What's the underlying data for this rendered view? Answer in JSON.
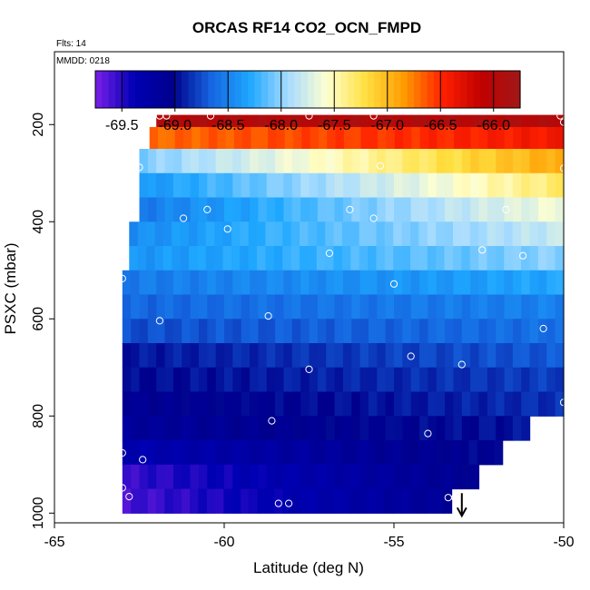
{
  "title": "ORCAS RF14 CO2_OCN_FMPD",
  "flights_note": "Flts: 14",
  "date_note": "MMDD: 0218",
  "chart_data": {
    "type": "heatmap",
    "title": "ORCAS RF14 CO2_OCN_FMPD",
    "xlabel": "Latitude (deg N)",
    "ylabel": "PSXC (mbar)",
    "xlim": [
      -65,
      -50
    ],
    "ylim": [
      1020,
      50
    ],
    "y_inverted": true,
    "xticks": [
      -65,
      -60,
      -55,
      -50
    ],
    "xtick_labels": [
      "-65",
      "-60",
      "-55",
      "-50"
    ],
    "yticks": [
      200,
      400,
      600,
      800,
      1000
    ],
    "ytick_labels": [
      "200",
      "400",
      "600",
      "800",
      "1000"
    ],
    "colorbar": {
      "range": [
        -69.75,
        -65.75
      ],
      "ticks": [
        -69.5,
        -69.0,
        -68.5,
        -68.0,
        -67.5,
        -67.0,
        -66.5,
        -66.0
      ],
      "tick_labels": [
        "-69.5",
        "-69.0",
        "-68.5",
        "-68.0",
        "-67.5",
        "-67.0",
        "-66.5",
        "-66.0"
      ],
      "colors": [
        "#7b1fe8",
        "#0000b4",
        "#00008c",
        "#1565e0",
        "#1ea7ff",
        "#a8dcff",
        "#ffffd0",
        "#ffe040",
        "#ff9a00",
        "#ff2000",
        "#c00000",
        "#a01818"
      ]
    },
    "layers": [
      {
        "p_top": 180,
        "p_bottom": 205,
        "lat_start": -62.0,
        "lat_end": -50,
        "v_left": -65.95,
        "v_right": -65.95
      },
      {
        "p_top": 205,
        "p_bottom": 250,
        "lat_start": -62.2,
        "lat_end": -50,
        "v_left": -66.7,
        "v_right": -66.4
      },
      {
        "p_top": 250,
        "p_bottom": 300,
        "lat_start": -62.5,
        "lat_end": -50,
        "v_left": -68.05,
        "v_right": -66.9
      },
      {
        "p_top": 300,
        "p_bottom": 350,
        "lat_start": -62.5,
        "lat_end": -50,
        "v_left": -68.4,
        "v_right": -67.3
      },
      {
        "p_top": 350,
        "p_bottom": 400,
        "lat_start": -62.5,
        "lat_end": -50,
        "v_left": -68.55,
        "v_right": -67.6
      },
      {
        "p_top": 400,
        "p_bottom": 450,
        "lat_start": -62.8,
        "lat_end": -50,
        "v_left": -68.45,
        "v_right": -67.8
      },
      {
        "p_top": 450,
        "p_bottom": 500,
        "lat_start": -62.8,
        "lat_end": -50,
        "v_left": -68.4,
        "v_right": -68.0
      },
      {
        "p_top": 500,
        "p_bottom": 550,
        "lat_start": -63.0,
        "lat_end": -50,
        "v_left": -68.55,
        "v_right": -68.3
      },
      {
        "p_top": 550,
        "p_bottom": 600,
        "lat_start": -63.0,
        "lat_end": -50,
        "v_left": -68.65,
        "v_right": -68.5
      },
      {
        "p_top": 600,
        "p_bottom": 650,
        "lat_start": -63.0,
        "lat_end": -50,
        "v_left": -68.75,
        "v_right": -68.6
      },
      {
        "p_top": 650,
        "p_bottom": 700,
        "lat_start": -63.0,
        "lat_end": -50,
        "v_left": -68.95,
        "v_right": -68.7
      },
      {
        "p_top": 700,
        "p_bottom": 750,
        "lat_start": -63.0,
        "lat_end": -50,
        "v_left": -69.0,
        "v_right": -68.8
      },
      {
        "p_top": 750,
        "p_bottom": 800,
        "lat_start": -63.0,
        "lat_end": -50,
        "v_left": -69.1,
        "v_right": -68.85
      },
      {
        "p_top": 800,
        "p_bottom": 850,
        "lat_start": -63.0,
        "lat_end": -51.0,
        "v_left": -69.15,
        "v_right": -68.95
      },
      {
        "p_top": 850,
        "p_bottom": 900,
        "lat_start": -63.0,
        "lat_end": -51.8,
        "v_left": -69.35,
        "v_right": -69.0
      },
      {
        "p_top": 900,
        "p_bottom": 950,
        "lat_start": -63.0,
        "lat_end": -52.5,
        "v_left": -69.55,
        "v_right": -69.05
      },
      {
        "p_top": 950,
        "p_bottom": 1000,
        "lat_start": -63.0,
        "lat_end": -53.3,
        "v_left": -69.6,
        "v_right": -69.1
      }
    ],
    "points": [
      {
        "lat": -61.9,
        "p": 182
      },
      {
        "lat": -61.7,
        "p": 182
      },
      {
        "lat": -60.4,
        "p": 182
      },
      {
        "lat": -57.5,
        "p": 182
      },
      {
        "lat": -55.6,
        "p": 182
      },
      {
        "lat": -50.1,
        "p": 182
      },
      {
        "lat": -50.0,
        "p": 195
      },
      {
        "lat": -62.5,
        "p": 288
      },
      {
        "lat": -55.4,
        "p": 285
      },
      {
        "lat": -50.0,
        "p": 290
      },
      {
        "lat": -61.2,
        "p": 393
      },
      {
        "lat": -60.5,
        "p": 375
      },
      {
        "lat": -59.9,
        "p": 415
      },
      {
        "lat": -56.3,
        "p": 375
      },
      {
        "lat": -55.6,
        "p": 393
      },
      {
        "lat": -51.7,
        "p": 375
      },
      {
        "lat": -56.9,
        "p": 465
      },
      {
        "lat": -52.4,
        "p": 458
      },
      {
        "lat": -51.2,
        "p": 470
      },
      {
        "lat": -63.0,
        "p": 517
      },
      {
        "lat": -55.0,
        "p": 528
      },
      {
        "lat": -61.9,
        "p": 604
      },
      {
        "lat": -58.7,
        "p": 594
      },
      {
        "lat": -50.6,
        "p": 620
      },
      {
        "lat": -57.5,
        "p": 704
      },
      {
        "lat": -54.5,
        "p": 677
      },
      {
        "lat": -53.0,
        "p": 694
      },
      {
        "lat": -50.0,
        "p": 772
      },
      {
        "lat": -58.6,
        "p": 810
      },
      {
        "lat": -54.0,
        "p": 836
      },
      {
        "lat": -63.0,
        "p": 876
      },
      {
        "lat": -62.4,
        "p": 890
      },
      {
        "lat": -63.0,
        "p": 948
      },
      {
        "lat": -62.8,
        "p": 966
      },
      {
        "lat": -58.4,
        "p": 980
      },
      {
        "lat": -58.1,
        "p": 980
      },
      {
        "lat": -53.4,
        "p": 968
      },
      {
        "lat": -53.2,
        "p": 968
      },
      {
        "lat": -53.1,
        "p": 968
      }
    ],
    "arrow_lat": -53.0,
    "grid": false
  }
}
